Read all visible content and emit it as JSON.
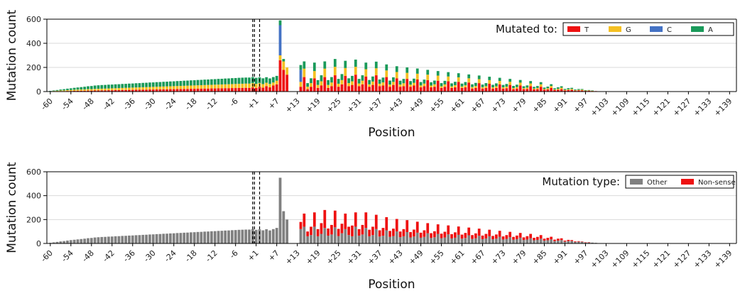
{
  "chart_data": [
    {
      "type": "bar",
      "stacked": true,
      "x_tick_labels": [
        "-60",
        "-54",
        "-48",
        "-42",
        "-36",
        "-30",
        "-24",
        "-18",
        "-12",
        "-6",
        "+1",
        "+7",
        "+13",
        "+19",
        "+25",
        "+31",
        "+37",
        "+43",
        "+49",
        "+55",
        "+61",
        "+67",
        "+73",
        "+79",
        "+85",
        "+91",
        "+97",
        "+103",
        "+109",
        "+115",
        "+121",
        "+127",
        "+133",
        "+139"
      ],
      "y_ticks": [
        0,
        200,
        400,
        600
      ],
      "xlabel": "Position",
      "ylabel": "Mutation count",
      "ylim": [
        0,
        600
      ],
      "grid": "horizontal",
      "legend": {
        "title": "Mutated to:",
        "placement": "top-right",
        "entries": [
          "T",
          "G",
          "C",
          "A"
        ]
      },
      "colors": {
        "T": "#ee1111",
        "G": "#f5c022",
        "C": "#4472c4",
        "A": "#1a9a5a"
      },
      "series": [
        {
          "name": "T",
          "values": [
            1,
            2,
            3,
            4,
            4,
            5,
            5,
            6,
            6,
            7,
            7,
            8,
            8,
            9,
            9,
            10,
            10,
            11,
            11,
            12,
            12,
            13,
            13,
            14,
            14,
            15,
            15,
            16,
            16,
            17,
            17,
            18,
            18,
            19,
            19,
            20,
            20,
            21,
            21,
            22,
            22,
            23,
            23,
            24,
            24,
            25,
            25,
            26,
            26,
            27,
            27,
            28,
            28,
            29,
            29,
            30,
            30,
            31,
            30,
            35,
            30,
            40,
            32,
            45,
            35,
            50,
            60,
            260,
            180,
            140,
            0,
            0,
            0,
            40,
            120,
            20,
            40,
            110,
            30,
            50,
            120,
            30,
            45,
            135,
            40,
            60,
            130,
            45,
            55,
            140,
            45,
            60,
            125,
            40,
            55,
            135,
            45,
            50,
            120,
            40,
            55,
            110,
            40,
            45,
            105,
            40,
            50,
            100,
            35,
            45,
            95,
            35,
            40,
            90,
            30,
            40,
            85,
            30,
            35,
            80,
            30,
            35,
            75,
            25,
            30,
            70,
            25,
            30,
            65,
            25,
            30,
            60,
            25,
            28,
            55,
            20,
            25,
            50,
            20,
            22,
            45,
            18,
            20,
            40,
            15,
            18,
            30,
            12,
            15,
            20,
            10,
            12,
            14,
            8,
            10,
            10,
            6,
            8,
            6,
            4,
            3,
            2
          ]
        },
        {
          "name": "G",
          "values": [
            2,
            3,
            4,
            5,
            6,
            7,
            8,
            9,
            10,
            10,
            11,
            12,
            12,
            13,
            14,
            14,
            15,
            15,
            16,
            16,
            17,
            17,
            18,
            18,
            19,
            19,
            20,
            20,
            21,
            21,
            22,
            22,
            23,
            23,
            24,
            24,
            25,
            25,
            26,
            26,
            27,
            27,
            28,
            28,
            29,
            29,
            30,
            30,
            31,
            31,
            32,
            32,
            33,
            33,
            34,
            34,
            35,
            35,
            36,
            35,
            34,
            30,
            30,
            28,
            28,
            25,
            30,
            40,
            70,
            60,
            0,
            0,
            0,
            40,
            70,
            20,
            30,
            60,
            25,
            35,
            70,
            25,
            30,
            70,
            25,
            35,
            65,
            25,
            30,
            65,
            22,
            30,
            60,
            20,
            28,
            58,
            20,
            26,
            55,
            18,
            25,
            52,
            18,
            24,
            50,
            17,
            22,
            48,
            16,
            21,
            45,
            15,
            20,
            42,
            14,
            19,
            40,
            13,
            18,
            38,
            12,
            17,
            35,
            12,
            16,
            33,
            11,
            15,
            30,
            10,
            14,
            28,
            10,
            13,
            26,
            9,
            12,
            24,
            8,
            11,
            22,
            7,
            10,
            20,
            6,
            9,
            16,
            5,
            8,
            12,
            4,
            6,
            8,
            3,
            4,
            5,
            2,
            2,
            1
          ]
        },
        {
          "name": "C",
          "values": [
            0,
            0,
            0,
            0,
            0,
            0,
            0,
            0,
            0,
            0,
            0,
            0,
            0,
            0,
            0,
            0,
            0,
            0,
            0,
            0,
            0,
            0,
            0,
            0,
            0,
            0,
            0,
            0,
            0,
            0,
            0,
            0,
            0,
            0,
            0,
            0,
            0,
            0,
            0,
            0,
            0,
            0,
            0,
            0,
            0,
            0,
            0,
            0,
            0,
            0,
            0,
            0,
            0,
            0,
            0,
            0,
            0,
            0,
            0,
            0,
            0,
            0,
            0,
            0,
            0,
            0,
            0,
            250,
            0,
            0,
            0,
            0,
            0,
            100,
            0,
            0,
            0,
            0,
            0,
            0,
            0,
            0,
            0,
            0,
            0,
            0,
            0,
            0,
            0,
            0,
            0,
            0,
            0,
            0,
            0,
            0,
            0,
            0,
            0,
            0,
            0,
            0,
            0,
            0,
            0,
            0,
            0,
            0,
            0,
            0,
            0,
            0,
            0,
            0,
            0,
            0,
            0,
            0,
            0,
            0,
            0,
            0,
            0,
            0,
            0,
            0,
            0,
            0,
            0,
            0,
            0,
            0,
            0,
            0,
            0,
            0,
            0,
            0,
            0,
            0,
            0,
            0,
            0,
            0,
            0,
            0,
            0,
            0,
            0,
            0,
            0,
            0,
            0,
            0,
            0,
            0,
            0,
            0,
            0,
            0,
            0,
            0,
            0
          ]
        },
        {
          "name": "A",
          "values": [
            2,
            4,
            6,
            8,
            10,
            12,
            14,
            16,
            18,
            20,
            22,
            24,
            26,
            28,
            29,
            30,
            30,
            31,
            31,
            32,
            32,
            33,
            33,
            34,
            34,
            35,
            35,
            36,
            36,
            37,
            37,
            38,
            38,
            39,
            39,
            40,
            40,
            41,
            41,
            42,
            42,
            43,
            43,
            44,
            44,
            45,
            45,
            46,
            46,
            47,
            47,
            48,
            48,
            49,
            49,
            50,
            50,
            50,
            50,
            50,
            50,
            48,
            48,
            46,
            46,
            45,
            40,
            40,
            20,
            0,
            0,
            0,
            0,
            40,
            60,
            30,
            40,
            70,
            40,
            50,
            60,
            40,
            45,
            65,
            40,
            50,
            60,
            40,
            45,
            60,
            38,
            45,
            55,
            36,
            42,
            55,
            35,
            40,
            50,
            33,
            38,
            48,
            32,
            36,
            45,
            30,
            35,
            43,
            28,
            33,
            40,
            27,
            31,
            38,
            26,
            30,
            36,
            25,
            28,
            34,
            24,
            27,
            32,
            23,
            26,
            30,
            22,
            25,
            28,
            21,
            24,
            26,
            20,
            22,
            24,
            18,
            20,
            22,
            16,
            18,
            20,
            14,
            16,
            18,
            12,
            14,
            15,
            10,
            12,
            12,
            8,
            10,
            9,
            6,
            7,
            6,
            4,
            3,
            2
          ]
        }
      ]
    },
    {
      "type": "bar",
      "stacked": true,
      "x_tick_labels": [
        "-60",
        "-54",
        "-48",
        "-42",
        "-36",
        "-30",
        "-24",
        "-18",
        "-12",
        "-6",
        "+1",
        "+7",
        "+13",
        "+19",
        "+25",
        "+31",
        "+37",
        "+43",
        "+49",
        "+55",
        "+61",
        "+67",
        "+73",
        "+79",
        "+85",
        "+91",
        "+97",
        "+103",
        "+109",
        "+115",
        "+121",
        "+127",
        "+133",
        "+139"
      ],
      "y_ticks": [
        0,
        200,
        400,
        600
      ],
      "xlabel": "Position",
      "ylabel": "Mutation count",
      "ylim": [
        0,
        600
      ],
      "grid": "horizontal",
      "legend": {
        "title": "Mutation type:",
        "placement": "top-right",
        "entries": [
          "Other",
          "Non-sense"
        ]
      },
      "colors": {
        "Other": "#808080",
        "Non-sense": "#ee1111"
      },
      "series": [
        {
          "name": "Other",
          "values": [
            5,
            9,
            13,
            17,
            20,
            24,
            28,
            31,
            34,
            37,
            40,
            44,
            46,
            50,
            52,
            54,
            55,
            57,
            58,
            60,
            61,
            63,
            64,
            66,
            67,
            69,
            70,
            72,
            73,
            75,
            76,
            78,
            79,
            81,
            82,
            84,
            85,
            87,
            88,
            90,
            91,
            93,
            94,
            96,
            97,
            99,
            100,
            102,
            103,
            105,
            106,
            108,
            109,
            111,
            112,
            114,
            115,
            116,
            116,
            120,
            114,
            118,
            110,
            119,
            109,
            120,
            130,
            550,
            270,
            200,
            0,
            0,
            0,
            120,
            140,
            60,
            70,
            140,
            60,
            80,
            130,
            65,
            75,
            135,
            62,
            85,
            120,
            70,
            60,
            140,
            65,
            75,
            130,
            60,
            70,
            120,
            58,
            65,
            110,
            55,
            62,
            100,
            52,
            60,
            95,
            50,
            58,
            90,
            48,
            55,
            85,
            46,
            52,
            80,
            44,
            50,
            76,
            42,
            48,
            72,
            40,
            46,
            68,
            38,
            44,
            64,
            36,
            42,
            60,
            35,
            40,
            56,
            33,
            38,
            52,
            31,
            36,
            48,
            29,
            33,
            44,
            27,
            30,
            40,
            24,
            27,
            34,
            20,
            24,
            28,
            16,
            20,
            20,
            12,
            14,
            14,
            8,
            9,
            7,
            5,
            3,
            1
          ]
        },
        {
          "name": "Non-sense",
          "values": [
            0,
            0,
            0,
            0,
            0,
            0,
            0,
            0,
            0,
            0,
            0,
            0,
            0,
            0,
            0,
            0,
            0,
            0,
            0,
            0,
            0,
            0,
            0,
            0,
            0,
            0,
            0,
            0,
            0,
            0,
            0,
            0,
            0,
            0,
            0,
            0,
            0,
            0,
            0,
            0,
            0,
            0,
            0,
            0,
            0,
            0,
            0,
            0,
            0,
            0,
            0,
            0,
            0,
            0,
            0,
            0,
            0,
            0,
            0,
            0,
            0,
            0,
            0,
            0,
            0,
            0,
            0,
            0,
            0,
            0,
            0,
            0,
            0,
            60,
            110,
            40,
            70,
            120,
            60,
            90,
            150,
            60,
            80,
            140,
            60,
            80,
            130,
            70,
            90,
            120,
            55,
            80,
            130,
            55,
            70,
            120,
            52,
            65,
            110,
            50,
            62,
            105,
            48,
            60,
            100,
            45,
            58,
            92,
            42,
            55,
            85,
            40,
            50,
            80,
            38,
            48,
            75,
            36,
            45,
            70,
            34,
            42,
            65,
            32,
            40,
            60,
            30,
            38,
            55,
            28,
            35,
            50,
            26,
            32,
            45,
            24,
            30,
            40,
            22,
            28,
            36,
            20,
            25,
            30,
            16,
            20,
            22,
            12,
            16,
            15,
            8,
            10,
            8,
            5,
            5,
            3,
            2,
            1,
            0
          ]
        }
      ]
    }
  ]
}
